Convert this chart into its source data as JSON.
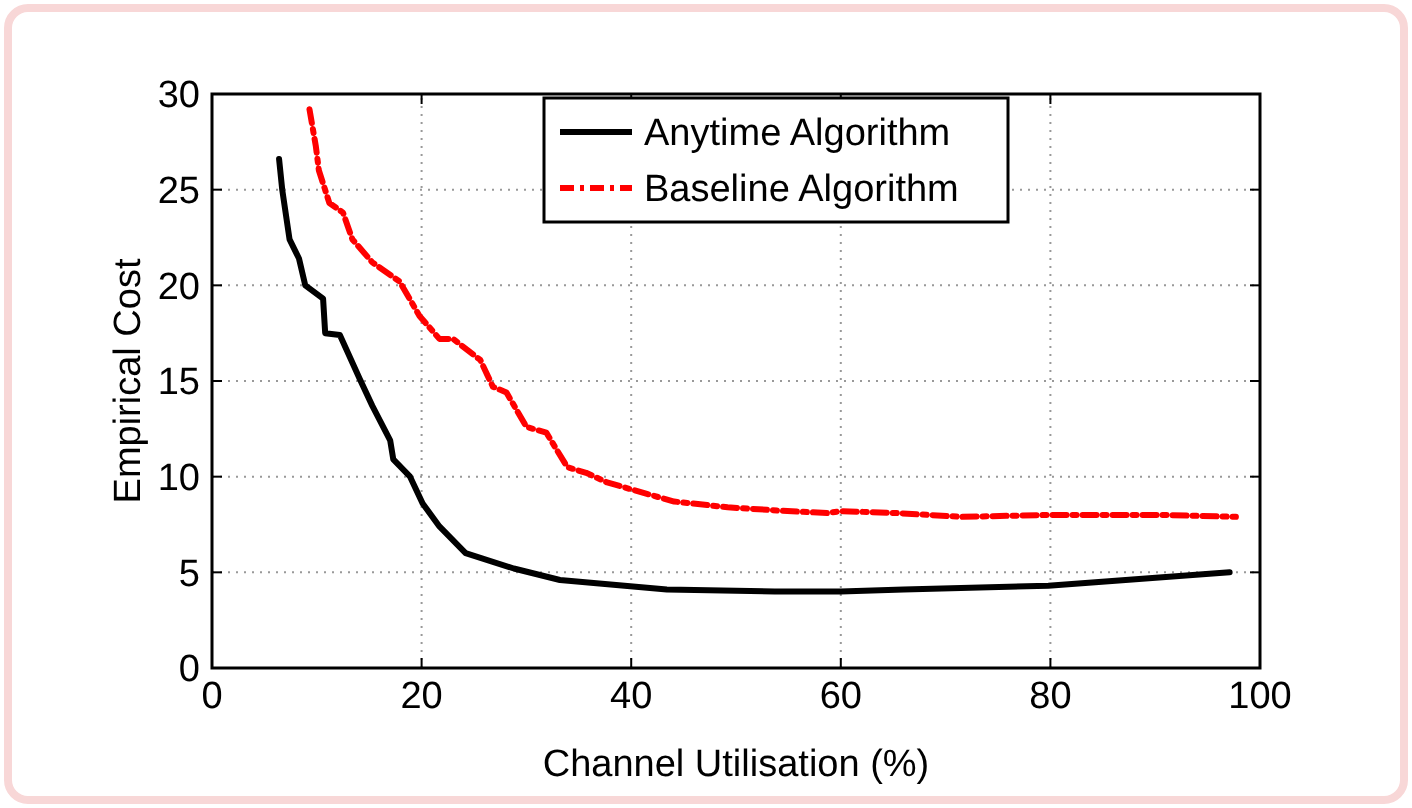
{
  "chart_data": {
    "type": "line",
    "xlabel": "Channel Utilisation (%)",
    "ylabel": "Empirical Cost",
    "xlim": [
      0,
      100
    ],
    "xticks": [
      0,
      20,
      40,
      60,
      80,
      100
    ],
    "ylim": [
      0,
      30
    ],
    "yticks": [
      0,
      5,
      10,
      15,
      20,
      25,
      30
    ],
    "grid": true,
    "legend": "top",
    "series": [
      {
        "name": "Anytime Algorithm",
        "color": "#000000",
        "line_style": "solid",
        "x": [
          6.4,
          6.7,
          7.4,
          8.3,
          8.9,
          10.6,
          10.8,
          12.2,
          14.1,
          15.3,
          17.0,
          17.3,
          18.9,
          20.1,
          21.7,
          24.2,
          28.8,
          33.2,
          43.4,
          53.7,
          60,
          66,
          79.8,
          97.1
        ],
        "values": [
          26.6,
          25,
          22.4,
          21.4,
          20,
          19.3,
          17.5,
          17.4,
          15.1,
          13.7,
          11.9,
          10.9,
          10,
          8.6,
          7.4,
          6.0,
          5.2,
          4.6,
          4.1,
          4.0,
          4.0,
          4.1,
          4.3,
          5.0
        ]
      },
      {
        "name": "Baseline Algorithm",
        "color": "#ff0000",
        "line_style": "dashed",
        "x": [
          9.3,
          9.9,
          10.2,
          11.2,
          12.5,
          13.4,
          15.3,
          17.9,
          19.8,
          21.7,
          23,
          25.6,
          26.8,
          28.1,
          30,
          31.9,
          33.9,
          35.7,
          37.7,
          41.5,
          44.1,
          49.2,
          54.9,
          58.7,
          60,
          65.2,
          71.5,
          79.8,
          90.7,
          97.7
        ],
        "values": [
          29.2,
          27.3,
          26,
          24.3,
          23.8,
          22.4,
          21.2,
          20.2,
          18.4,
          17.2,
          17.2,
          16.1,
          14.7,
          14.4,
          12.6,
          12.3,
          10.5,
          10.2,
          9.7,
          9.1,
          8.7,
          8.4,
          8.2,
          8.1,
          8.2,
          8.1,
          7.9,
          8.0,
          8.0,
          7.9
        ]
      }
    ]
  }
}
